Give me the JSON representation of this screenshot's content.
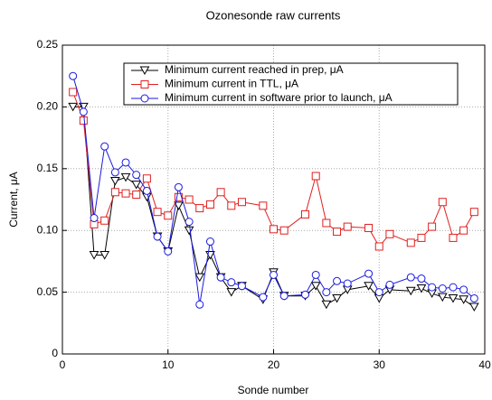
{
  "chart_data": {
    "type": "line",
    "title": "Ozonesonde raw currents",
    "xlabel": "Sonde number",
    "ylabel": "Current, μA",
    "xlim": [
      0,
      40
    ],
    "xticks": [
      0,
      10,
      20,
      30,
      40
    ],
    "ylim": [
      0,
      0.25
    ],
    "yticks": [
      0,
      0.05,
      {
        "value": 0.1,
        "label": "0.10"
      },
      0.15,
      {
        "value": 0.2,
        "label": "0.20"
      },
      0.25
    ],
    "grid": true,
    "legend": "upper right",
    "series": [
      {
        "name": "Minimum current reached in prep, μA",
        "color": "#000000",
        "marker": "triangle",
        "x": [
          1,
          2,
          3,
          4,
          5,
          6,
          7,
          8,
          9,
          10,
          11,
          12,
          13,
          14,
          15,
          16,
          17,
          19,
          20,
          21,
          23,
          24,
          25,
          26,
          27,
          29,
          30,
          31,
          33,
          34,
          35,
          36,
          37,
          38,
          39
        ],
        "values": [
          0.2,
          0.2,
          0.08,
          0.08,
          0.14,
          0.143,
          0.137,
          0.127,
          0.095,
          0.083,
          0.12,
          0.1,
          0.062,
          0.08,
          0.062,
          0.05,
          0.055,
          0.044,
          0.066,
          0.047,
          0.047,
          0.055,
          0.04,
          0.045,
          0.052,
          0.055,
          0.045,
          0.052,
          0.051,
          0.053,
          0.049,
          0.046,
          0.045,
          0.044,
          0.038
        ]
      },
      {
        "name": "Minimum current in TTL, μA",
        "color": "#e02020",
        "marker": "square",
        "x": [
          1,
          2,
          3,
          4,
          5,
          6,
          7,
          8,
          9,
          10,
          11,
          12,
          13,
          14,
          15,
          16,
          17,
          19,
          20,
          21,
          23,
          24,
          25,
          26,
          27,
          29,
          30,
          31,
          33,
          34,
          35,
          36,
          37,
          38,
          39
        ],
        "values": [
          0.212,
          0.189,
          0.105,
          0.108,
          0.131,
          0.13,
          0.129,
          0.142,
          0.115,
          0.112,
          0.127,
          0.125,
          0.118,
          0.121,
          0.131,
          0.12,
          0.123,
          0.12,
          0.101,
          0.1,
          0.113,
          0.144,
          0.106,
          0.099,
          0.103,
          0.102,
          0.087,
          0.097,
          0.09,
          0.094,
          0.103,
          0.123,
          0.094,
          0.1,
          0.115
        ]
      },
      {
        "name": "Minimum current in software prior to launch, μA",
        "color": "#1a1ae0",
        "marker": "circle",
        "x": [
          1,
          2,
          3,
          4,
          5,
          6,
          7,
          8,
          9,
          10,
          11,
          12,
          13,
          14,
          15,
          16,
          17,
          19,
          20,
          21,
          23,
          24,
          25,
          26,
          27,
          29,
          30,
          31,
          33,
          34,
          35,
          36,
          37,
          38,
          39
        ],
        "values": [
          0.225,
          0.196,
          0.11,
          0.168,
          0.147,
          0.155,
          0.145,
          0.132,
          0.095,
          0.083,
          0.135,
          0.107,
          0.04,
          0.091,
          0.062,
          0.058,
          0.055,
          0.046,
          0.064,
          0.047,
          0.048,
          0.064,
          0.05,
          0.059,
          0.057,
          0.065,
          0.05,
          0.056,
          0.062,
          0.061,
          0.054,
          0.053,
          0.054,
          0.052,
          0.045
        ]
      }
    ]
  }
}
